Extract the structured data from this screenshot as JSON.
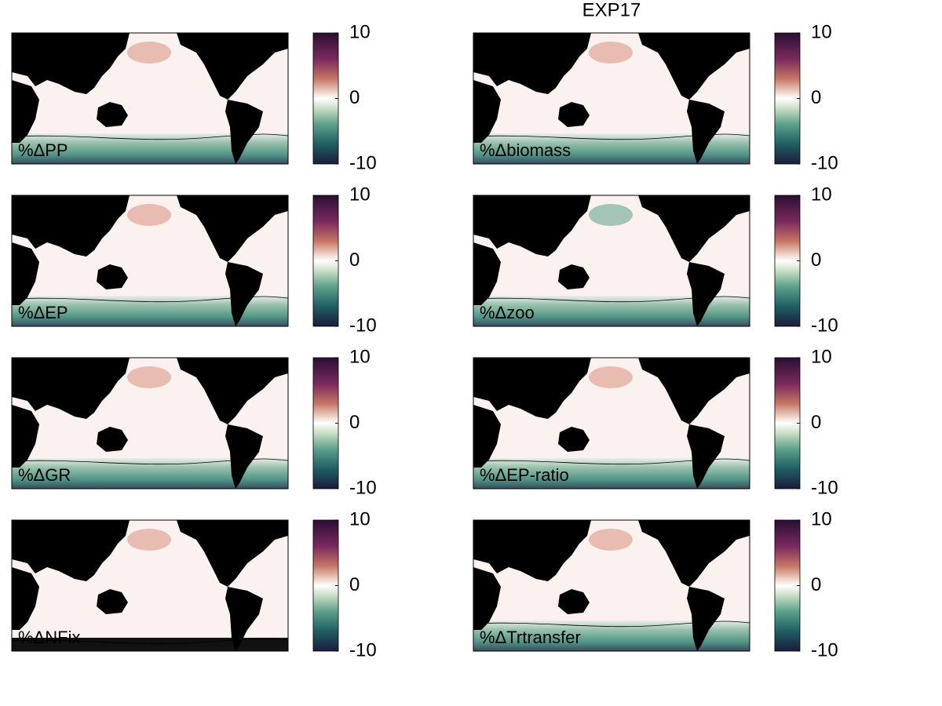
{
  "title": "EXP17",
  "panels": [
    {
      "label": "%ΔPP",
      "colorbar": {
        "lim": [
          -10,
          10
        ],
        "ticks": [
          10,
          0,
          -10
        ]
      }
    },
    {
      "label": "%Δbiomass",
      "colorbar": {
        "lim": [
          -10,
          10
        ],
        "ticks": [
          10,
          0,
          -10
        ]
      }
    },
    {
      "label": "%ΔEP",
      "colorbar": {
        "lim": [
          -10,
          10
        ],
        "ticks": [
          10,
          0,
          -10
        ]
      }
    },
    {
      "label": "%Δzoo",
      "colorbar": {
        "lim": [
          -10,
          10
        ],
        "ticks": [
          10,
          0,
          -10
        ]
      }
    },
    {
      "label": "%ΔGR",
      "colorbar": {
        "lim": [
          -10,
          10
        ],
        "ticks": [
          10,
          0,
          -10
        ]
      }
    },
    {
      "label": "%ΔEP-ratio",
      "colorbar": {
        "lim": [
          -10,
          10
        ],
        "ticks": [
          10,
          0,
          -10
        ]
      }
    },
    {
      "label": "%ΔNFix",
      "colorbar": {
        "lim": [
          -10,
          10
        ],
        "ticks": [
          10,
          0,
          -10
        ]
      }
    },
    {
      "label": "%ΔTrtransfer",
      "colorbar": {
        "lim": [
          -10,
          10
        ],
        "ticks": [
          10,
          0,
          -10
        ]
      }
    }
  ]
}
